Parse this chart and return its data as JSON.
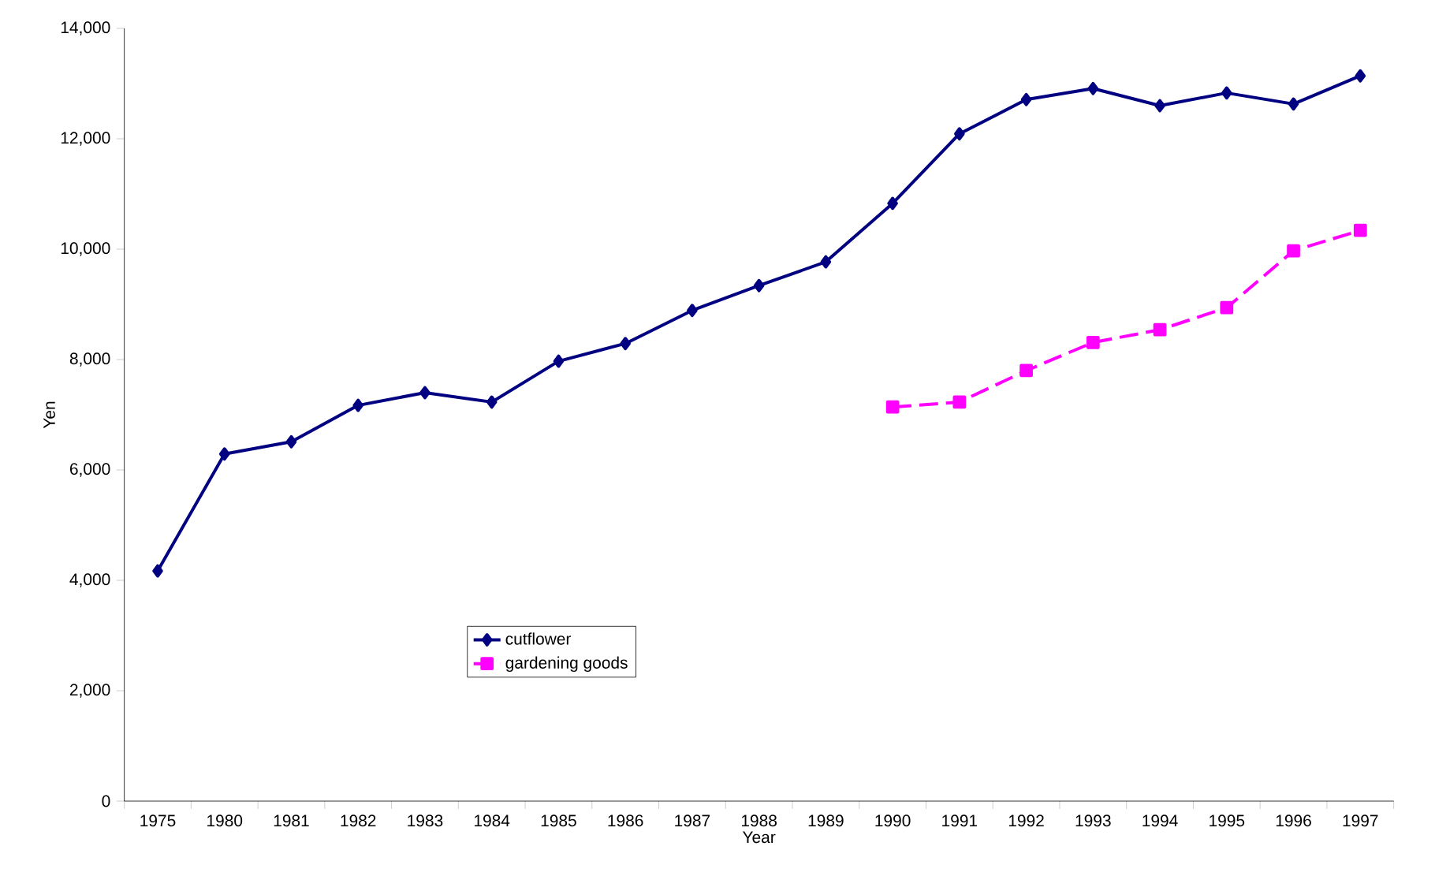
{
  "chart_data": {
    "type": "line",
    "xlabel": "Year",
    "ylabel": "Yen",
    "categories": [
      "1975",
      "1980",
      "1981",
      "1982",
      "1983",
      "1984",
      "1985",
      "1986",
      "1987",
      "1988",
      "1989",
      "1990",
      "1991",
      "1992",
      "1993",
      "1994",
      "1995",
      "1996",
      "1997"
    ],
    "series": [
      {
        "name": "cutflower",
        "color": "#000080",
        "marker": "diamond",
        "line_style": "solid",
        "values": [
          4170,
          6290,
          6510,
          7170,
          7400,
          7230,
          7970,
          8290,
          8890,
          9340,
          9770,
          10830,
          12090,
          12710,
          12910,
          12600,
          12830,
          12630,
          13140
        ]
      },
      {
        "name": "gardening goods",
        "color": "#ff00ff",
        "marker": "square",
        "line_style": "dashed",
        "values": [
          null,
          null,
          null,
          null,
          null,
          null,
          null,
          null,
          null,
          null,
          null,
          7140,
          7230,
          7800,
          8310,
          8540,
          8940,
          9970,
          10340
        ]
      }
    ],
    "ylim": [
      0,
      14000
    ],
    "yticks": [
      {
        "value": 0,
        "label": "0"
      },
      {
        "value": 2000,
        "label": "2,000"
      },
      {
        "value": 4000,
        "label": "4,000"
      },
      {
        "value": 6000,
        "label": "6,000"
      },
      {
        "value": 8000,
        "label": "8,000"
      },
      {
        "value": 10000,
        "label": "10,000"
      },
      {
        "value": 12000,
        "label": "12,000"
      },
      {
        "value": 14000,
        "label": "14,000"
      }
    ],
    "grid": false,
    "legend": "bottom"
  }
}
